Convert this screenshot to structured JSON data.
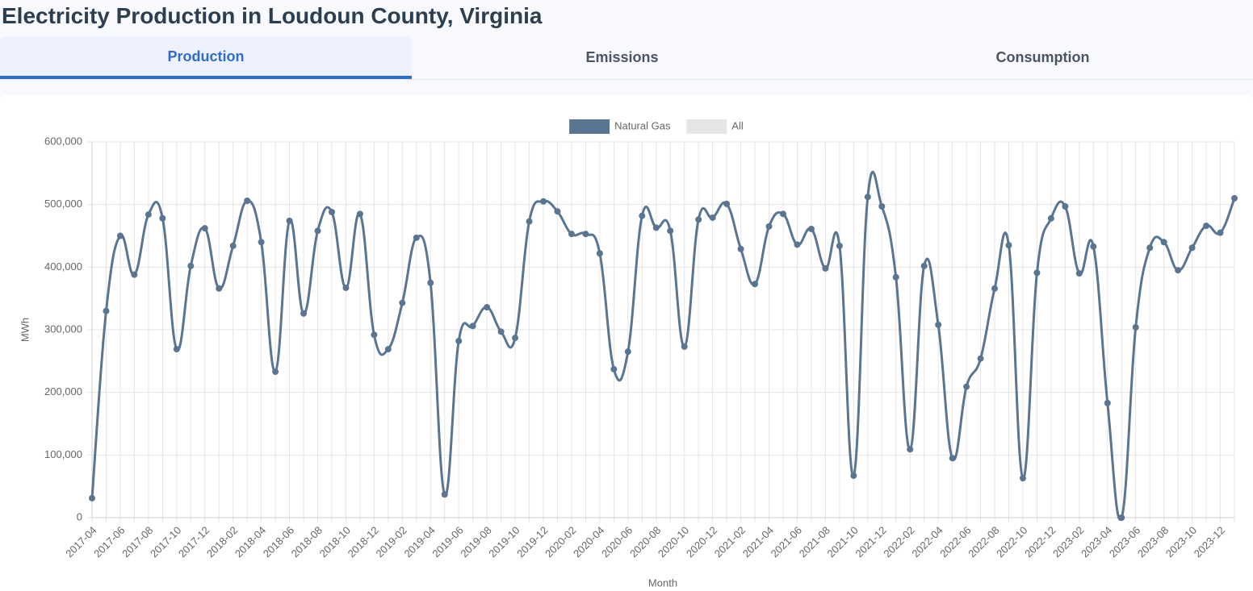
{
  "page": {
    "title": "Electricity Production in Loudoun County, Virginia",
    "tabs": [
      "Production",
      "Emissions",
      "Consumption"
    ]
  },
  "chart_data": {
    "type": "line",
    "xlabel": "Month",
    "ylabel": "MWh",
    "categories": [
      "2017-04",
      null,
      "2017-06",
      null,
      "2017-08",
      null,
      "2017-10",
      null,
      "2017-12",
      null,
      "2018-02",
      null,
      "2018-04",
      null,
      "2018-06",
      null,
      "2018-08",
      null,
      "2018-10",
      null,
      "2018-12",
      null,
      "2019-02",
      null,
      "2019-04",
      null,
      "2019-06",
      null,
      "2019-08",
      null,
      "2019-10",
      null,
      "2019-12",
      null,
      "2020-02",
      null,
      "2020-04",
      null,
      "2020-06",
      null,
      "2020-08",
      null,
      "2020-10",
      null,
      "2020-12",
      null,
      "2021-02",
      null,
      "2021-04",
      null,
      "2021-06",
      null,
      "2021-08",
      null,
      "2021-10",
      null,
      "2021-12",
      null,
      "2022-02",
      null,
      "2022-04",
      null,
      "2022-06",
      null,
      "2022-08",
      null,
      "2022-10",
      null,
      "2022-12",
      null,
      "2023-02",
      null,
      "2023-04",
      null,
      "2023-06",
      null,
      "2023-08",
      null,
      "2023-10",
      null,
      "2023-12",
      null
    ],
    "series": [
      {
        "name": "Natural Gas",
        "color": "#5a7592",
        "values": [
          31000,
          330000,
          450000,
          388000,
          484000,
          478000,
          269000,
          402000,
          462000,
          366000,
          434000,
          506000,
          440000,
          233000,
          474000,
          326000,
          458000,
          488000,
          367000,
          485000,
          292000,
          269000,
          343000,
          447000,
          375000,
          37000,
          282000,
          306000,
          336000,
          297000,
          287000,
          473000,
          505000,
          489000,
          453000,
          453000,
          422000,
          237000,
          265000,
          482000,
          463000,
          458000,
          273000,
          476000,
          479000,
          501000,
          429000,
          373000,
          465000,
          485000,
          436000,
          461000,
          398000,
          434000,
          67000,
          512000,
          497000,
          384000,
          109000,
          402000,
          308000,
          95000,
          209000,
          254000,
          366000,
          435000,
          63000,
          391000,
          478000,
          497000,
          390000,
          433000,
          183000,
          0,
          304000,
          431000,
          440000,
          395000,
          431000,
          466000,
          455000,
          510000
        ]
      },
      {
        "name": "All",
        "color": "#e5e5e5",
        "hidden": true
      }
    ],
    "ylim": [
      0,
      600000
    ],
    "yticks": [
      0,
      {
        "value": 100000,
        "label": "100,000"
      },
      {
        "value": 200000,
        "label": "200,000"
      },
      {
        "value": 300000,
        "label": "300,000"
      },
      {
        "value": 400000,
        "label": "400,000"
      },
      {
        "value": 500000,
        "label": "500,000"
      },
      {
        "value": 600000,
        "label": "600,000"
      }
    ],
    "grid": true,
    "legend": "top"
  }
}
